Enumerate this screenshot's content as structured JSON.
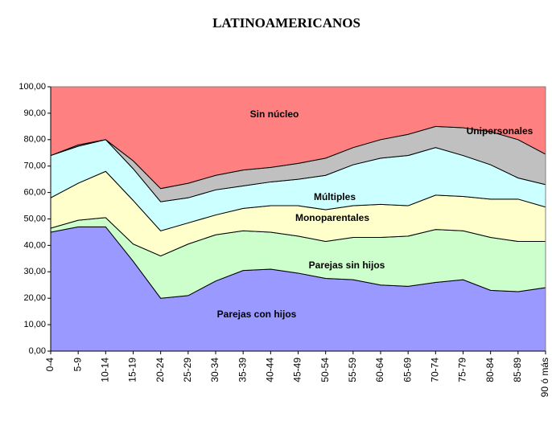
{
  "chart_data": {
    "type": "stacked_area",
    "title": "LATINOAMERICANOS",
    "categories": [
      "0-4",
      "5-9",
      "10-14",
      "15-19",
      "20-24",
      "25-29",
      "30-34",
      "35-39",
      "40-44",
      "45-49",
      "50-54",
      "55-59",
      "60-64",
      "65-69",
      "70-74",
      "75-79",
      "80-84",
      "85-89",
      "90 ó más"
    ],
    "series": [
      {
        "name": "Parejas con hijos",
        "color": "#9999ff",
        "values": [
          45,
          47,
          47,
          34,
          20,
          21,
          26.5,
          30.5,
          31,
          29.5,
          27.5,
          27,
          25,
          24.5,
          26,
          27,
          23,
          22.5,
          24
        ]
      },
      {
        "name": "Parejas sin hijos",
        "color": "#ccffcc",
        "values": [
          1.5,
          2.5,
          3.5,
          6.5,
          16,
          19.5,
          17.5,
          15,
          14,
          14,
          14,
          16,
          18,
          19,
          20,
          18.5,
          20,
          19,
          17.5
        ]
      },
      {
        "name": "Monoparentales",
        "color": "#ffffcc",
        "values": [
          11.5,
          14,
          17.5,
          16.5,
          9.5,
          8,
          7.5,
          8.5,
          10,
          11.5,
          12,
          12,
          12.5,
          11.5,
          13,
          13,
          14.5,
          16,
          13
        ]
      },
      {
        "name": "Múltiples",
        "color": "#ccffff",
        "values": [
          16,
          14,
          12,
          12,
          11,
          9.5,
          9.5,
          8.5,
          9,
          10,
          13,
          15.5,
          17.5,
          19,
          18,
          15.5,
          13,
          8,
          8.5
        ]
      },
      {
        "name": "Unipersonales",
        "color": "#c0c0c0",
        "values": [
          0,
          0.5,
          0,
          3,
          5,
          5.5,
          5.5,
          6,
          5.5,
          6,
          6.5,
          6.5,
          7,
          8,
          8,
          10.5,
          12.5,
          14.5,
          11.5
        ]
      },
      {
        "name": "Sin núcleo",
        "color": "#ff8080",
        "values": [
          26,
          22,
          20,
          28,
          38.5,
          36.5,
          33.5,
          31.5,
          30.5,
          29,
          27,
          23,
          20,
          18,
          15,
          15.5,
          17,
          20,
          25.5
        ]
      }
    ],
    "ylim": [
      0,
      100
    ],
    "yticks": [
      {
        "value": 0,
        "label": "0,00"
      },
      {
        "value": 10,
        "label": "10,00"
      },
      {
        "value": 20,
        "label": "20,00"
      },
      {
        "value": 30,
        "label": "30,00"
      },
      {
        "value": 40,
        "label": "40,00"
      },
      {
        "value": 50,
        "label": "50,00"
      },
      {
        "value": 60,
        "label": "60,00"
      },
      {
        "value": 70,
        "label": "70,00"
      },
      {
        "value": 80,
        "label": "80,00"
      },
      {
        "value": 90,
        "label": "90,00"
      },
      {
        "value": 100,
        "label": "100,00"
      }
    ]
  }
}
